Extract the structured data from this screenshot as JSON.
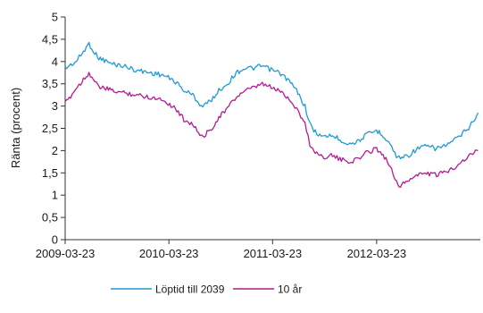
{
  "chart_data": {
    "type": "line",
    "title": "",
    "xlabel": "",
    "ylabel": "Ränta (procent)",
    "xlim": [
      "2009-03-23",
      "2013-03-23"
    ],
    "ylim": [
      0,
      5
    ],
    "x_ticks": [
      "2009-03-23",
      "2010-03-23",
      "2011-03-23",
      "2012-03-23"
    ],
    "y_ticks": [
      "0",
      "0,5",
      "1",
      "1,5",
      "2",
      "2,5",
      "3",
      "3,5",
      "4",
      "4,5",
      "5"
    ],
    "grid": false,
    "legend_position": "bottom",
    "series": [
      {
        "name": "Löptid till 2039",
        "color": "#1f9ad6",
        "x": [
          "2009-03-23",
          "2009-05-01",
          "2009-06-15",
          "2009-07-15",
          "2009-09-01",
          "2009-10-15",
          "2009-12-01",
          "2010-01-15",
          "2010-03-01",
          "2010-04-15",
          "2010-05-15",
          "2010-06-15",
          "2010-07-15",
          "2010-08-15",
          "2010-09-15",
          "2010-10-15",
          "2010-11-15",
          "2010-12-15",
          "2011-01-15",
          "2011-02-15",
          "2011-03-23",
          "2011-04-15",
          "2011-05-15",
          "2011-06-15",
          "2011-07-15",
          "2011-08-01",
          "2011-08-15",
          "2011-09-15",
          "2011-10-15",
          "2011-11-15",
          "2011-12-15",
          "2012-01-15",
          "2012-02-15",
          "2012-03-23",
          "2012-04-15",
          "2012-05-15",
          "2012-06-01",
          "2012-06-15",
          "2012-07-15",
          "2012-08-15",
          "2012-09-15",
          "2012-10-15",
          "2012-11-15",
          "2012-12-15",
          "2013-01-15",
          "2013-02-15",
          "2013-03-15"
        ],
        "values": [
          3.85,
          4.0,
          4.4,
          4.1,
          3.95,
          3.9,
          3.8,
          3.75,
          3.7,
          3.55,
          3.35,
          3.25,
          3.0,
          3.1,
          3.35,
          3.5,
          3.75,
          3.85,
          3.85,
          3.9,
          3.8,
          3.75,
          3.6,
          3.35,
          3.0,
          2.6,
          2.45,
          2.3,
          2.35,
          2.25,
          2.15,
          2.2,
          2.35,
          2.45,
          2.35,
          2.1,
          1.85,
          1.85,
          1.9,
          2.05,
          2.1,
          2.05,
          2.1,
          2.2,
          2.35,
          2.55,
          2.85
        ]
      },
      {
        "name": "10 år",
        "color": "#b01c93",
        "x": [
          "2009-03-23",
          "2009-05-01",
          "2009-06-15",
          "2009-07-15",
          "2009-09-01",
          "2009-10-15",
          "2009-12-01",
          "2010-01-15",
          "2010-03-01",
          "2010-04-15",
          "2010-05-15",
          "2010-06-15",
          "2010-07-15",
          "2010-08-15",
          "2010-09-15",
          "2010-10-15",
          "2010-11-15",
          "2010-12-15",
          "2011-01-15",
          "2011-02-15",
          "2011-03-23",
          "2011-04-15",
          "2011-05-15",
          "2011-06-15",
          "2011-07-15",
          "2011-08-01",
          "2011-08-15",
          "2011-09-15",
          "2011-10-15",
          "2011-11-15",
          "2011-12-15",
          "2012-01-15",
          "2012-02-15",
          "2012-03-23",
          "2012-04-15",
          "2012-05-15",
          "2012-06-01",
          "2012-06-15",
          "2012-07-15",
          "2012-08-15",
          "2012-09-15",
          "2012-10-15",
          "2012-11-15",
          "2012-12-15",
          "2013-01-15",
          "2013-02-15",
          "2013-03-15"
        ],
        "values": [
          3.05,
          3.4,
          3.75,
          3.45,
          3.35,
          3.3,
          3.25,
          3.2,
          3.15,
          2.95,
          2.7,
          2.6,
          2.3,
          2.45,
          2.75,
          2.95,
          3.2,
          3.35,
          3.4,
          3.5,
          3.4,
          3.35,
          3.2,
          2.95,
          2.6,
          2.15,
          2.0,
          1.85,
          1.9,
          1.8,
          1.75,
          1.8,
          1.95,
          2.05,
          1.9,
          1.6,
          1.3,
          1.2,
          1.35,
          1.45,
          1.5,
          1.45,
          1.5,
          1.6,
          1.75,
          1.9,
          2.0
        ]
      }
    ]
  }
}
